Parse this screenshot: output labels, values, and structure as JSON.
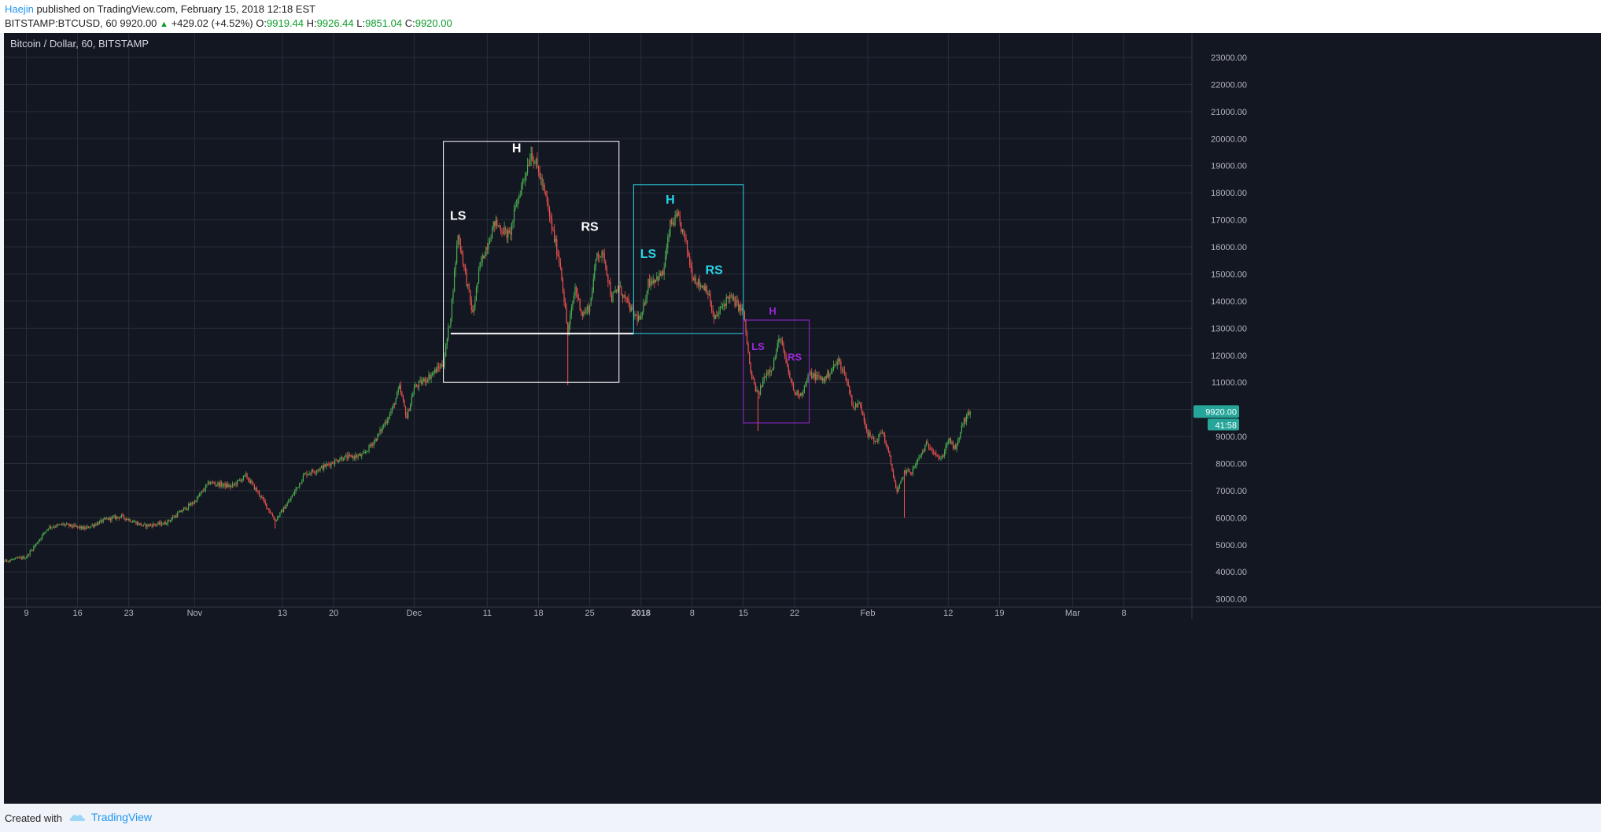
{
  "header": {
    "author": "Haejin",
    "published_text": "published on TradingView.com, February 15, 2018 12:18 EST",
    "symbol_interval": "BITSTAMP:BTCUSD, 60",
    "last_price": "9920.00",
    "change": "+429.02 (+4.52%)",
    "open_label": "O:",
    "open": "9919.44",
    "high_label": "H:",
    "high": "9926.44",
    "low_label": "L:",
    "low": "9851.04",
    "close_label": "C:",
    "close": "9920.00"
  },
  "footer": {
    "created_with": "Created with",
    "brand": "TradingView"
  },
  "colors": {
    "background": "#131722",
    "grid": "#2a2e39",
    "up": "#4caf50",
    "down": "#ef5350",
    "white_pattern": "#ffffff",
    "cyan_pattern": "#29d3e8",
    "purple_pattern": "#9c27d8",
    "price_badge": "#26a69a"
  },
  "chart_data": {
    "type": "candlestick",
    "title": "Bitcoin / Dollar, 60, BITSTAMP",
    "x_tick_labels": [
      "9",
      "16",
      "23",
      "Nov",
      "13",
      "20",
      "Dec",
      "11",
      "18",
      "25",
      "2018",
      "8",
      "15",
      "22",
      "Feb",
      "12",
      "19",
      "Mar",
      "8"
    ],
    "y_tick_labels": [
      "23000.00",
      "22000.00",
      "21000.00",
      "20000.00",
      "19000.00",
      "18000.00",
      "17000.00",
      "16000.00",
      "15000.00",
      "14000.00",
      "13000.00",
      "12000.00",
      "11000.00",
      "9000.00",
      "8000.00",
      "7000.00",
      "6000.00",
      "5000.00",
      "4000.00",
      "3000.00"
    ],
    "ylim": [
      2700,
      23900
    ],
    "last_price_label": "9920.00",
    "countdown_label": "41:58",
    "price_path": [
      {
        "date": "2017-10-03",
        "price": 4300
      },
      {
        "date": "2017-10-06",
        "price": 4400
      },
      {
        "date": "2017-10-09",
        "price": 4550
      },
      {
        "date": "2017-10-12",
        "price": 5650
      },
      {
        "date": "2017-10-14",
        "price": 5750
      },
      {
        "date": "2017-10-17",
        "price": 5600
      },
      {
        "date": "2017-10-20",
        "price": 5950
      },
      {
        "date": "2017-10-22",
        "price": 6050
      },
      {
        "date": "2017-10-25",
        "price": 5700
      },
      {
        "date": "2017-10-28",
        "price": 5800
      },
      {
        "date": "2017-11-01",
        "price": 6600
      },
      {
        "date": "2017-11-03",
        "price": 7300
      },
      {
        "date": "2017-11-06",
        "price": 7150
      },
      {
        "date": "2017-11-08",
        "price": 7550
      },
      {
        "date": "2017-11-10",
        "price": 6800
      },
      {
        "date": "2017-11-12",
        "price": 5900
      },
      {
        "date": "2017-11-14",
        "price": 6650
      },
      {
        "date": "2017-11-16",
        "price": 7600
      },
      {
        "date": "2017-11-18",
        "price": 7800
      },
      {
        "date": "2017-11-21",
        "price": 8200
      },
      {
        "date": "2017-11-24",
        "price": 8300
      },
      {
        "date": "2017-11-26",
        "price": 9000
      },
      {
        "date": "2017-11-28",
        "price": 10000
      },
      {
        "date": "2017-11-29",
        "price": 10800
      },
      {
        "date": "2017-11-30",
        "price": 9700
      },
      {
        "date": "2017-12-01",
        "price": 10800
      },
      {
        "date": "2017-12-03",
        "price": 11200
      },
      {
        "date": "2017-12-05",
        "price": 11700
      },
      {
        "date": "2017-12-06",
        "price": 13500
      },
      {
        "date": "2017-12-07",
        "price": 16500
      },
      {
        "date": "2017-12-08",
        "price": 15000
      },
      {
        "date": "2017-12-09",
        "price": 13500
      },
      {
        "date": "2017-12-10",
        "price": 15300
      },
      {
        "date": "2017-12-12",
        "price": 16900
      },
      {
        "date": "2017-12-14",
        "price": 16400
      },
      {
        "date": "2017-12-15",
        "price": 17600
      },
      {
        "date": "2017-12-17",
        "price": 19500
      },
      {
        "date": "2017-12-18",
        "price": 18800
      },
      {
        "date": "2017-12-19",
        "price": 17800
      },
      {
        "date": "2017-12-20",
        "price": 16500
      },
      {
        "date": "2017-12-21",
        "price": 15300
      },
      {
        "date": "2017-12-22",
        "price": 12800
      },
      {
        "date": "2017-12-23",
        "price": 14500
      },
      {
        "date": "2017-12-24",
        "price": 13500
      },
      {
        "date": "2017-12-25",
        "price": 13800
      },
      {
        "date": "2017-12-26",
        "price": 15800
      },
      {
        "date": "2017-12-27",
        "price": 15600
      },
      {
        "date": "2017-12-28",
        "price": 14100
      },
      {
        "date": "2017-12-29",
        "price": 14500
      },
      {
        "date": "2017-12-31",
        "price": 13500
      },
      {
        "date": "2018-01-01",
        "price": 13300
      },
      {
        "date": "2018-01-02",
        "price": 14700
      },
      {
        "date": "2018-01-04",
        "price": 15000
      },
      {
        "date": "2018-01-05",
        "price": 16800
      },
      {
        "date": "2018-01-06",
        "price": 17100
      },
      {
        "date": "2018-01-07",
        "price": 16300
      },
      {
        "date": "2018-01-08",
        "price": 15000
      },
      {
        "date": "2018-01-09",
        "price": 14600
      },
      {
        "date": "2018-01-10",
        "price": 14500
      },
      {
        "date": "2018-01-11",
        "price": 13300
      },
      {
        "date": "2018-01-13",
        "price": 14200
      },
      {
        "date": "2018-01-15",
        "price": 13600
      },
      {
        "date": "2018-01-16",
        "price": 11300
      },
      {
        "date": "2018-01-17",
        "price": 10500
      },
      {
        "date": "2018-01-18",
        "price": 11300
      },
      {
        "date": "2018-01-19",
        "price": 11600
      },
      {
        "date": "2018-01-20",
        "price": 12700
      },
      {
        "date": "2018-01-21",
        "price": 11500
      },
      {
        "date": "2018-01-22",
        "price": 10600
      },
      {
        "date": "2018-01-23",
        "price": 10600
      },
      {
        "date": "2018-01-24",
        "price": 11300
      },
      {
        "date": "2018-01-25",
        "price": 11200
      },
      {
        "date": "2018-01-26",
        "price": 11100
      },
      {
        "date": "2018-01-28",
        "price": 11800
      },
      {
        "date": "2018-01-29",
        "price": 11200
      },
      {
        "date": "2018-01-30",
        "price": 10100
      },
      {
        "date": "2018-01-31",
        "price": 10200
      },
      {
        "date": "2018-02-01",
        "price": 9100
      },
      {
        "date": "2018-02-02",
        "price": 8800
      },
      {
        "date": "2018-02-03",
        "price": 9200
      },
      {
        "date": "2018-02-04",
        "price": 8200
      },
      {
        "date": "2018-02-05",
        "price": 6900
      },
      {
        "date": "2018-02-06",
        "price": 7700
      },
      {
        "date": "2018-02-07",
        "price": 7700
      },
      {
        "date": "2018-02-08",
        "price": 8200
      },
      {
        "date": "2018-02-09",
        "price": 8700
      },
      {
        "date": "2018-02-10",
        "price": 8500
      },
      {
        "date": "2018-02-11",
        "price": 8100
      },
      {
        "date": "2018-02-12",
        "price": 8900
      },
      {
        "date": "2018-02-13",
        "price": 8500
      },
      {
        "date": "2018-02-14",
        "price": 9500
      },
      {
        "date": "2018-02-15",
        "price": 9920
      }
    ],
    "wicks": [
      {
        "date": "2017-12-22",
        "low": 10900
      },
      {
        "date": "2018-01-17",
        "low": 9200
      },
      {
        "date": "2018-02-06",
        "low": 6000
      },
      {
        "date": "2017-11-12",
        "low": 5600
      },
      {
        "date": "2017-12-17",
        "high": 19700
      }
    ],
    "annotations": {
      "white": {
        "box": {
          "from": "2017-12-05",
          "to": "2017-12-29",
          "low": 11000,
          "high": 19900
        },
        "neckline": {
          "from": "2017-12-06",
          "to": "2017-12-31",
          "price": 12800
        },
        "labels": [
          {
            "text": "LS",
            "date": "2017-12-07",
            "price": 17000
          },
          {
            "text": "H",
            "date": "2017-12-15",
            "price": 19500
          },
          {
            "text": "RS",
            "date": "2017-12-25",
            "price": 16600
          }
        ]
      },
      "cyan": {
        "box": {
          "from": "2017-12-31",
          "to": "2018-01-15",
          "low": 12800,
          "high": 18300
        },
        "labels": [
          {
            "text": "LS",
            "date": "2018-01-02",
            "price": 15600
          },
          {
            "text": "H",
            "date": "2018-01-05",
            "price": 17600
          },
          {
            "text": "RS",
            "date": "2018-01-11",
            "price": 15000
          }
        ]
      },
      "purple": {
        "box": {
          "from": "2018-01-15",
          "to": "2018-01-24",
          "low": 9500,
          "high": 13300
        },
        "labels": [
          {
            "text": "LS",
            "date": "2018-01-17",
            "price": 12200
          },
          {
            "text": "H",
            "date": "2018-01-19",
            "price": 13500
          },
          {
            "text": "RS",
            "date": "2018-01-22",
            "price": 11800
          }
        ]
      }
    }
  }
}
